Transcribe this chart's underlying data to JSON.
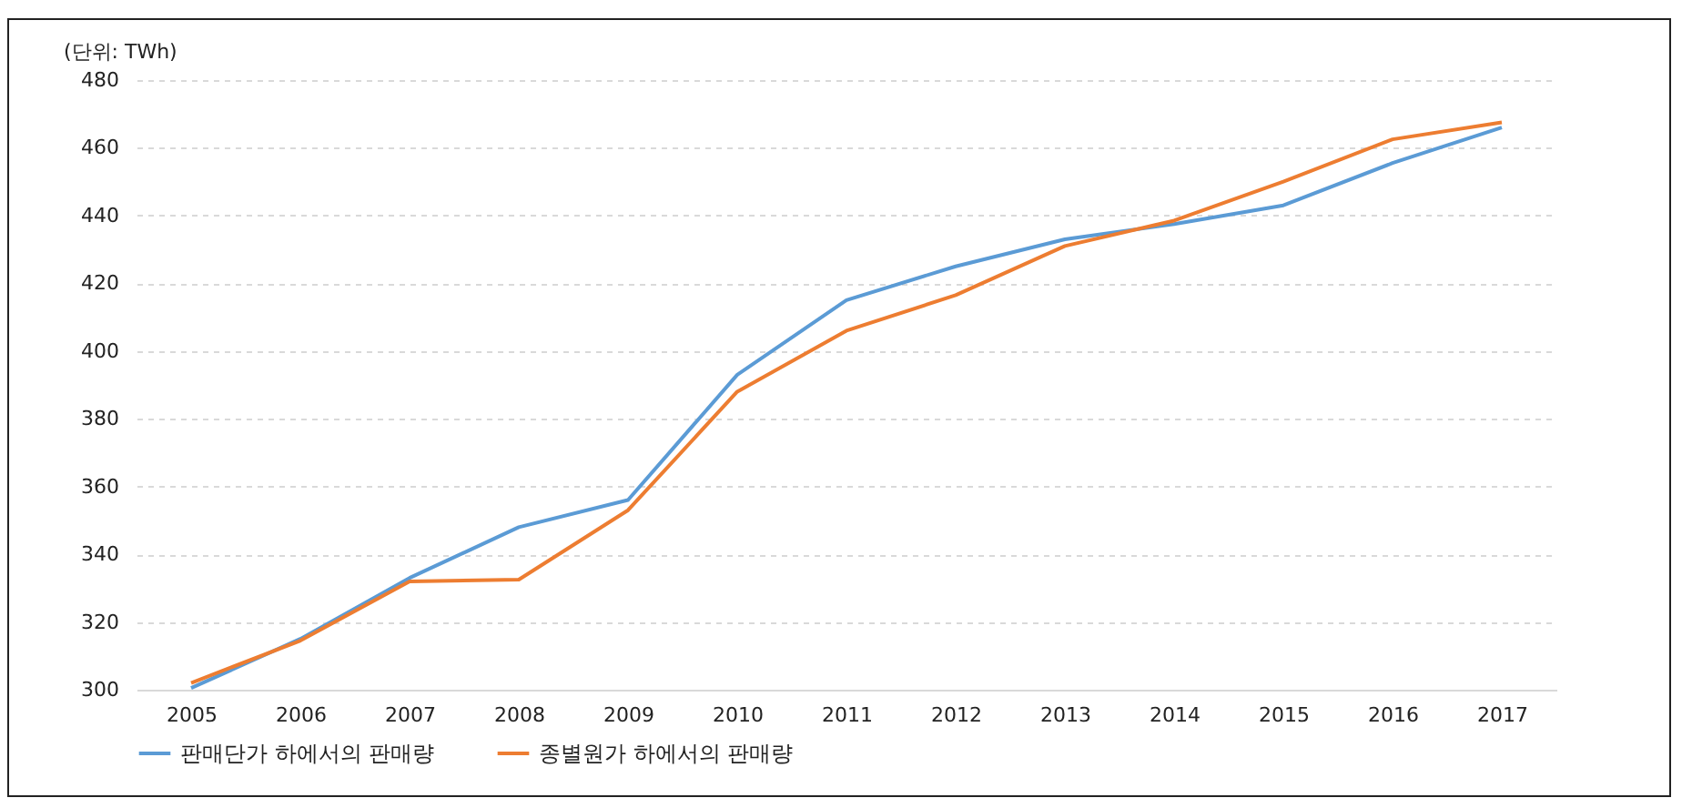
{
  "chart_data": {
    "type": "line",
    "annotations": [
      "(단위: TWh)"
    ],
    "categories": [
      "2005",
      "2006",
      "2007",
      "2008",
      "2009",
      "2010",
      "2011",
      "2012",
      "2013",
      "2014",
      "2015",
      "2016",
      "2017"
    ],
    "series": [
      {
        "name": "판매단가 하에서의 판매량",
        "color": "#5b9bd5",
        "values": [
          300.5,
          315,
          333,
          348,
          356,
          393,
          415,
          425,
          433,
          437.5,
          443,
          455.5,
          466
        ]
      },
      {
        "name": "종별원가 하에서의 판매량",
        "color": "#ed7d31",
        "values": [
          302,
          314.5,
          332,
          332.5,
          353,
          388,
          406,
          416.5,
          431,
          438.5,
          450,
          462.5,
          467.5
        ]
      }
    ],
    "ylim": [
      300,
      480
    ],
    "yticks": [
      300,
      320,
      340,
      360,
      380,
      400,
      420,
      440,
      460,
      480
    ],
    "grid": "y",
    "legend": "bottom",
    "line_style": "solid"
  }
}
